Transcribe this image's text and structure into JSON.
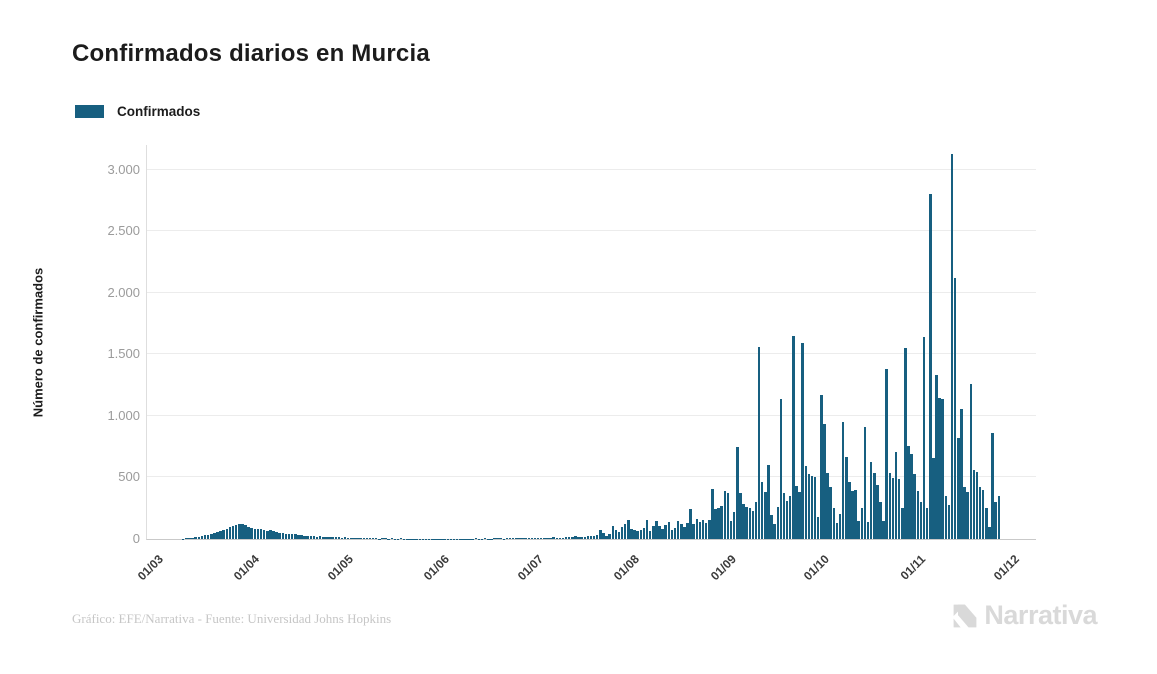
{
  "header": {
    "title": "Confirmados diarios en Murcia"
  },
  "legend": {
    "items": [
      {
        "label": "Confirmados",
        "color": "#175f80"
      }
    ]
  },
  "footer": {
    "credit": "Gráfico: EFE/Narrativa - Fuente: Universidad Johns Hopkins",
    "brand": "Narrativa"
  },
  "chart_data": {
    "type": "bar",
    "title": "Confirmados diarios en Murcia",
    "series_name": "Confirmados",
    "xlabel": "",
    "ylabel": "Número de confirmados",
    "ylim": [
      0,
      3200
    ],
    "grid": "horizontal",
    "legend_position": "top-left",
    "bar_color": "#175f80",
    "x_unit": "day",
    "x_range": [
      "01/03",
      "01/12"
    ],
    "y_ticks": [
      {
        "label": "0",
        "value": 0
      },
      {
        "label": "500",
        "value": 500
      },
      {
        "label": "1.000",
        "value": 1000
      },
      {
        "label": "1.500",
        "value": 1500
      },
      {
        "label": "2.000",
        "value": 2000
      },
      {
        "label": "2.500",
        "value": 2500
      },
      {
        "label": "3.000",
        "value": 3000
      }
    ],
    "x_ticks": [
      {
        "label": "01/03",
        "day": 0
      },
      {
        "label": "01/04",
        "day": 31
      },
      {
        "label": "01/05",
        "day": 61
      },
      {
        "label": "01/06",
        "day": 92
      },
      {
        "label": "01/07",
        "day": 122
      },
      {
        "label": "01/08",
        "day": 153
      },
      {
        "label": "01/09",
        "day": 184
      },
      {
        "label": "01/10",
        "day": 214
      },
      {
        "label": "01/11",
        "day": 245
      },
      {
        "label": "01/12",
        "day": 275
      }
    ],
    "values": [
      0,
      0,
      0,
      0,
      0,
      0,
      0,
      0,
      0,
      0,
      0,
      3,
      5,
      8,
      10,
      14,
      18,
      24,
      30,
      36,
      44,
      52,
      60,
      68,
      76,
      84,
      95,
      105,
      112,
      118,
      122,
      110,
      100,
      92,
      84,
      78,
      80,
      72,
      68,
      70,
      62,
      58,
      52,
      48,
      44,
      40,
      42,
      38,
      34,
      30,
      27,
      25,
      26,
      22,
      20,
      22,
      18,
      20,
      16,
      15,
      14,
      16,
      12,
      14,
      10,
      8,
      10,
      7,
      6,
      8,
      5,
      6,
      7,
      5,
      4,
      6,
      5,
      4,
      5,
      3,
      4,
      5,
      4,
      3,
      4,
      3,
      4,
      3,
      2,
      3,
      4,
      3,
      2,
      3,
      2,
      3,
      4,
      3,
      2,
      3,
      4,
      3,
      2,
      4,
      3,
      5,
      4,
      3,
      5,
      4,
      3,
      5,
      6,
      5,
      4,
      6,
      5,
      7,
      6,
      5,
      7,
      8,
      6,
      8,
      7,
      9,
      8,
      10,
      9,
      11,
      13,
      10,
      12,
      11,
      13,
      15,
      18,
      22,
      16,
      13,
      20,
      27,
      24,
      22,
      35,
      75,
      45,
      25,
      40,
      102,
      70,
      60,
      95,
      120,
      157,
      82,
      74,
      62,
      70,
      88,
      151,
      69,
      102,
      146,
      108,
      84,
      112,
      137,
      74,
      91,
      143,
      118,
      98,
      128,
      242,
      118,
      165,
      137,
      151,
      128,
      158,
      404,
      247,
      255,
      265,
      390,
      370,
      150,
      220,
      745,
      370,
      285,
      260,
      255,
      230,
      300,
      1560,
      465,
      385,
      600,
      195,
      120,
      260,
      1140,
      370,
      310,
      350,
      1650,
      430,
      380,
      1590,
      590,
      525,
      510,
      505,
      180,
      1170,
      935,
      533,
      424,
      250,
      130,
      200,
      948,
      663,
      465,
      391,
      397,
      150,
      250,
      913,
      139,
      628,
      533,
      437,
      300,
      150,
      1380,
      533,
      492,
      709,
      484,
      250,
      1550,
      755,
      690,
      527,
      390,
      300,
      1640,
      250,
      2800,
      655,
      1330,
      1145,
      1140,
      350,
      280,
      3130,
      2120,
      820,
      1055,
      420,
      380,
      1255,
      560,
      546,
      424,
      397,
      250,
      100,
      865,
      302,
      348,
      0
    ]
  }
}
